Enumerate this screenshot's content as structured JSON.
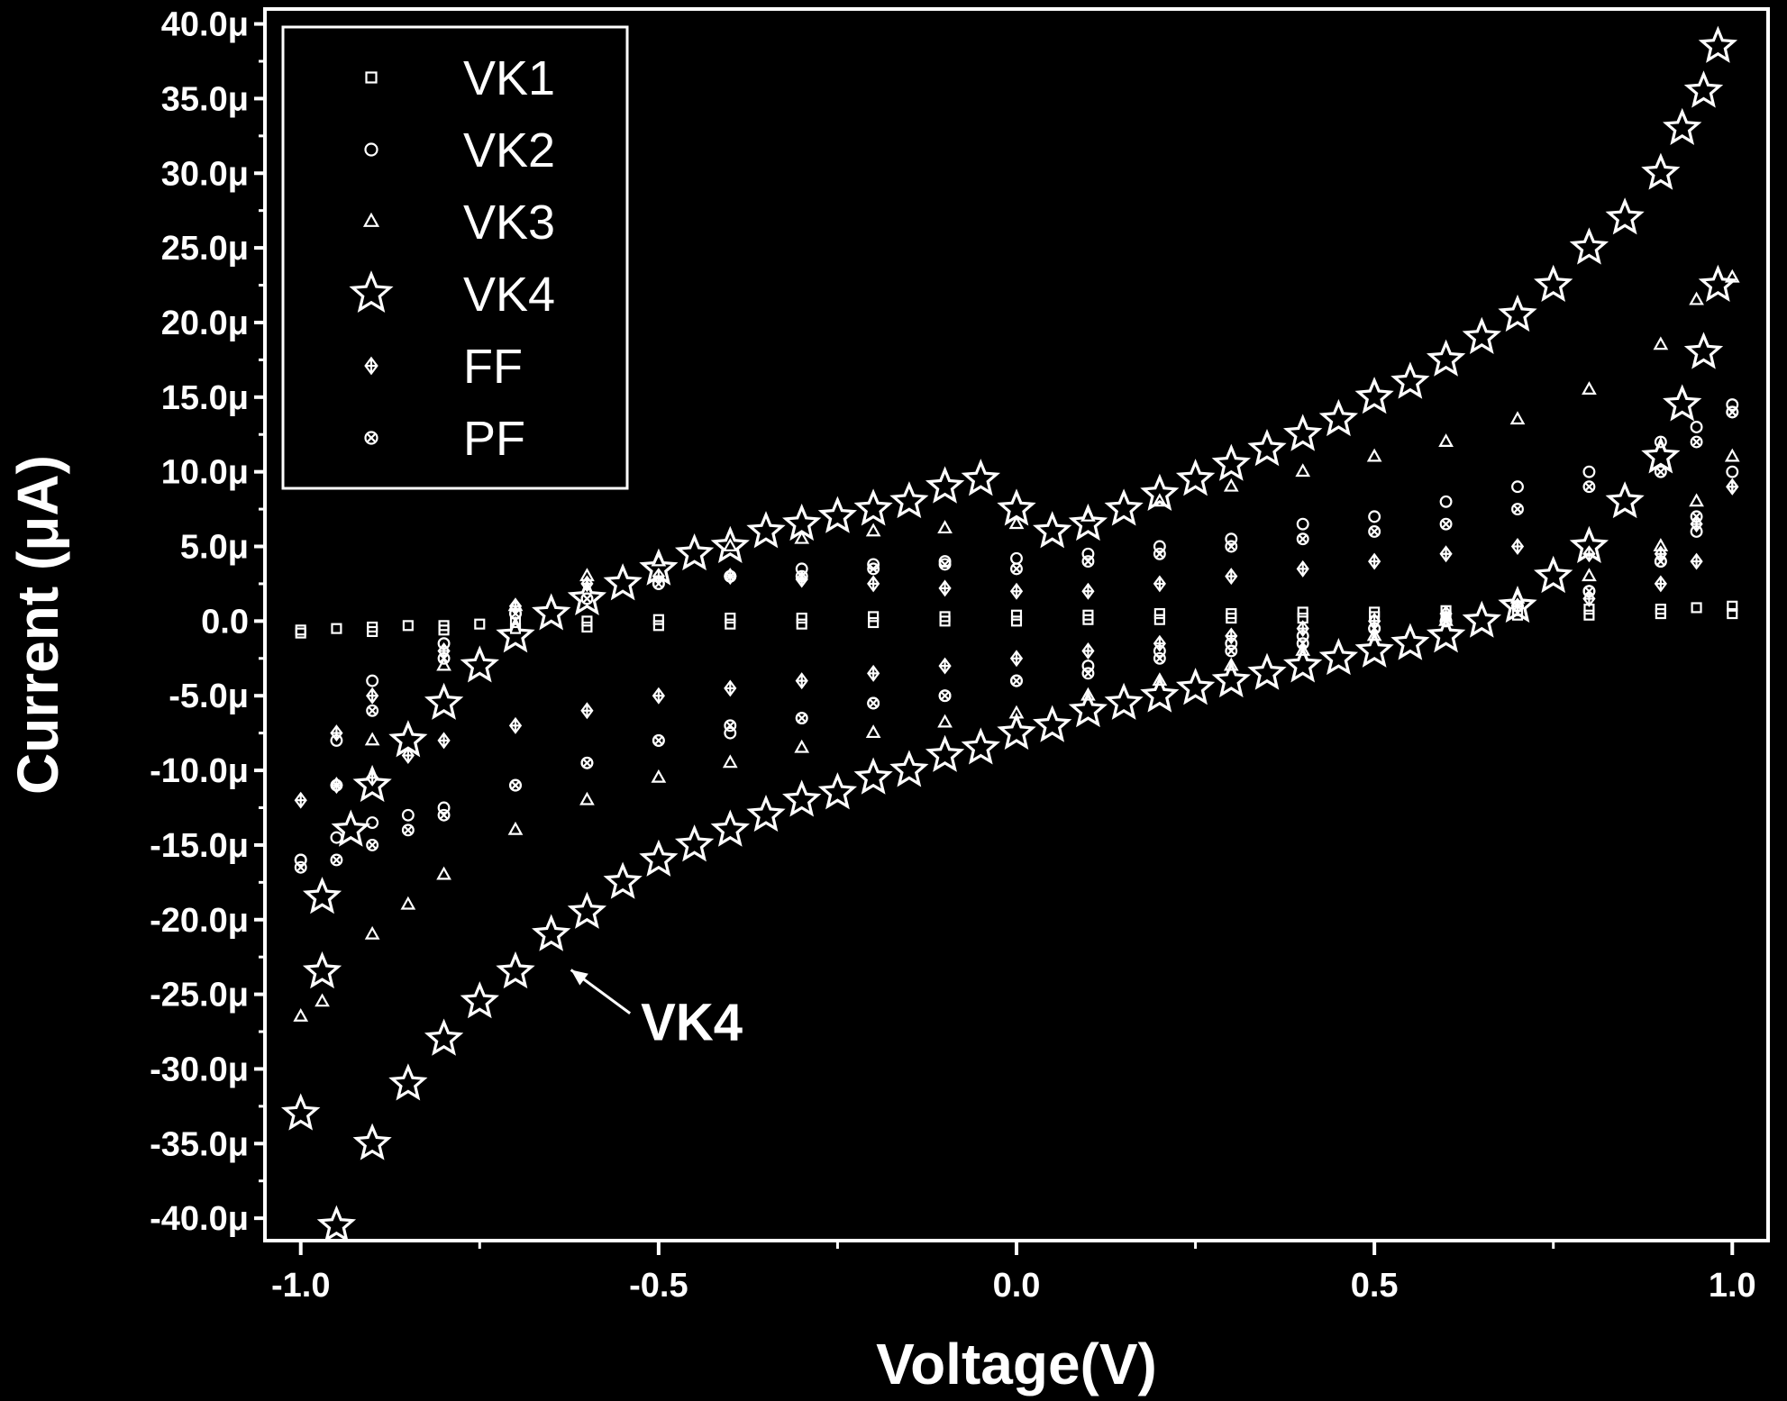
{
  "chart_data": {
    "type": "scatter",
    "xlabel": "Voltage(V)",
    "ylabel": "Current (μA)",
    "xlim": [
      -1.05,
      1.05
    ],
    "ylim": [
      -41.5,
      41.0
    ],
    "x_ticks": [
      -1.0,
      -0.5,
      0.0,
      0.5,
      1.0
    ],
    "x_tick_labels": [
      "-1.0",
      "-0.5",
      "0.0",
      "0.5",
      "1.0"
    ],
    "y_ticks": [
      40,
      35,
      30,
      25,
      20,
      15,
      10,
      5,
      0,
      -5,
      -10,
      -15,
      -20,
      -25,
      -30,
      -35,
      -40
    ],
    "y_tick_labels": [
      "40.0μ",
      "35.0μ",
      "30.0μ",
      "25.0μ",
      "20.0μ",
      "15.0μ",
      "10.0μ",
      "5.0μ",
      "0.0",
      "-5.0μ",
      "-10.0μ",
      "-15.0μ",
      "-20.0μ",
      "-25.0μ",
      "-30.0μ",
      "-35.0μ",
      "-40.0μ"
    ],
    "grid": false,
    "legend_position": "top-left",
    "annotation": {
      "text": "VK4",
      "x": -0.55,
      "y": -27,
      "arrow_to": [
        -0.63,
        -23
      ]
    },
    "colors": {
      "background": "#000000",
      "foreground": "#ffffff"
    },
    "series": [
      {
        "name": "VK1",
        "marker": "square",
        "x": [
          -1.0,
          -0.95,
          -0.9,
          -0.85,
          -0.8,
          -0.75,
          -0.7,
          -0.6,
          -0.5,
          -0.4,
          -0.3,
          -0.2,
          -0.1,
          0.0,
          0.1,
          0.2,
          0.3,
          0.4,
          0.5,
          0.6,
          0.7,
          0.8,
          0.9,
          0.95,
          1.0,
          -1.0,
          -0.9,
          -0.8,
          -0.7,
          -0.6,
          -0.5,
          -0.4,
          -0.3,
          -0.2,
          -0.1,
          0.0,
          0.1,
          0.2,
          0.3,
          0.4,
          0.5,
          0.6,
          0.7,
          0.8,
          0.9,
          1.0
        ],
        "y": [
          -0.6,
          -0.5,
          -0.4,
          -0.3,
          -0.3,
          -0.2,
          -0.1,
          0.0,
          0.1,
          0.2,
          0.2,
          0.3,
          0.3,
          0.4,
          0.4,
          0.5,
          0.5,
          0.6,
          0.6,
          0.7,
          0.7,
          0.8,
          0.8,
          0.9,
          1.0,
          -0.8,
          -0.7,
          -0.6,
          -0.5,
          -0.4,
          -0.3,
          -0.2,
          -0.2,
          -0.1,
          0.0,
          0.0,
          0.1,
          0.1,
          0.2,
          0.2,
          0.3,
          0.3,
          0.4,
          0.4,
          0.5,
          0.5
        ]
      },
      {
        "name": "VK2",
        "marker": "circle",
        "x": [
          -1.0,
          -0.95,
          -0.9,
          -0.85,
          -0.8,
          -0.7,
          -0.6,
          -0.5,
          -0.4,
          -0.3,
          -0.2,
          -0.1,
          0.0,
          0.1,
          0.2,
          0.3,
          0.4,
          0.5,
          0.6,
          0.7,
          0.8,
          0.9,
          0.95,
          1.0,
          1.0,
          0.95,
          0.9,
          0.8,
          0.7,
          0.6,
          0.5,
          0.4,
          0.3,
          0.2,
          0.1,
          0.0,
          -0.1,
          -0.2,
          -0.3,
          -0.4,
          -0.5,
          -0.6,
          -0.7,
          -0.8,
          -0.9,
          -0.95,
          -1.0
        ],
        "y": [
          -16,
          -14.5,
          -13.5,
          -13,
          -12.5,
          -11,
          -9.5,
          -8,
          -7.5,
          -6.5,
          -5.5,
          -5,
          -4,
          -3,
          -2,
          -1.5,
          -1,
          -0.5,
          0,
          1,
          2,
          4,
          6,
          10,
          14.5,
          13,
          12,
          10,
          9,
          8,
          7,
          6.5,
          5.5,
          5,
          4.5,
          4.2,
          4.0,
          3.8,
          3.5,
          3,
          2.5,
          1.5,
          0.5,
          -1.5,
          -4,
          -8,
          -16
        ]
      },
      {
        "name": "VK3",
        "marker": "triangle",
        "x": [
          -1.0,
          -0.97,
          -0.9,
          -0.85,
          -0.8,
          -0.7,
          -0.6,
          -0.5,
          -0.4,
          -0.3,
          -0.2,
          -0.1,
          0.0,
          0.1,
          0.2,
          0.3,
          0.4,
          0.5,
          0.6,
          0.7,
          0.8,
          0.9,
          0.95,
          1.0,
          1.0,
          0.95,
          0.9,
          0.8,
          0.7,
          0.6,
          0.5,
          0.4,
          0.3,
          0.2,
          0.1,
          0.0,
          -0.1,
          -0.2,
          -0.3,
          -0.4,
          -0.5,
          -0.6,
          -0.7,
          -0.8,
          -0.9
        ],
        "y": [
          -26.5,
          -25.5,
          -21,
          -19,
          -17,
          -14,
          -12,
          -10.5,
          -9.5,
          -8.5,
          -7.5,
          -6.8,
          -6.2,
          -5,
          -4,
          -3,
          -2,
          -1,
          0,
          1.5,
          3,
          5,
          8,
          11,
          23,
          21.5,
          18.5,
          15.5,
          13.5,
          12,
          11,
          10,
          9,
          8,
          7,
          6.5,
          6.2,
          6,
          5.5,
          5,
          4,
          3,
          1,
          -3,
          -8
        ]
      },
      {
        "name": "VK4",
        "marker": "star",
        "x": [
          -1.0,
          -0.97,
          -0.95,
          -0.9,
          -0.85,
          -0.8,
          -0.75,
          -0.7,
          -0.65,
          -0.6,
          -0.55,
          -0.5,
          -0.45,
          -0.4,
          -0.35,
          -0.3,
          -0.25,
          -0.2,
          -0.15,
          -0.1,
          -0.05,
          0.0,
          0.05,
          0.1,
          0.15,
          0.2,
          0.25,
          0.3,
          0.35,
          0.4,
          0.45,
          0.5,
          0.55,
          0.6,
          0.65,
          0.7,
          0.75,
          0.8,
          0.85,
          0.9,
          0.93,
          0.96,
          0.98,
          0.98,
          0.96,
          0.93,
          0.9,
          0.85,
          0.8,
          0.75,
          0.7,
          0.65,
          0.6,
          0.55,
          0.5,
          0.45,
          0.4,
          0.35,
          0.3,
          0.25,
          0.2,
          0.15,
          0.1,
          0.05,
          0.0,
          -0.05,
          -0.1,
          -0.15,
          -0.2,
          -0.25,
          -0.3,
          -0.35,
          -0.4,
          -0.45,
          -0.5,
          -0.55,
          -0.6,
          -0.65,
          -0.7,
          -0.75,
          -0.8,
          -0.85,
          -0.9,
          -0.93,
          -0.97
        ],
        "y": [
          -33,
          -23.5,
          -40.5,
          -35,
          -31,
          -28,
          -25.5,
          -23.5,
          -21,
          -19.5,
          -17.5,
          -16,
          -15,
          -14,
          -13,
          -12,
          -11.5,
          -10.5,
          -10,
          -9,
          -8.5,
          -7.5,
          -7,
          -6,
          -5.5,
          -5,
          -4.5,
          -4,
          -3.5,
          -3,
          -2.5,
          -2,
          -1.5,
          -1,
          0,
          1,
          3,
          5,
          8,
          11,
          14.5,
          18,
          22.5,
          38.5,
          35.5,
          33,
          30,
          27,
          25,
          22.5,
          20.5,
          19,
          17.5,
          16,
          15,
          13.5,
          12.5,
          11.5,
          10.5,
          9.5,
          8.5,
          7.5,
          6.5,
          6,
          7.5,
          9.5,
          9,
          8,
          7.5,
          7,
          6.5,
          6,
          5,
          4.5,
          3.5,
          2.5,
          1.5,
          0.5,
          -1,
          -3,
          -5.5,
          -8,
          -11,
          -14,
          -18.5
        ]
      },
      {
        "name": "FF",
        "marker": "diamond-cross",
        "x": [
          -1.0,
          -0.95,
          -0.9,
          -0.85,
          -0.8,
          -0.7,
          -0.6,
          -0.5,
          -0.4,
          -0.3,
          -0.2,
          -0.1,
          0.0,
          0.1,
          0.2,
          0.3,
          0.4,
          0.5,
          0.6,
          0.7,
          0.8,
          0.9,
          0.95,
          1.0,
          1.0,
          0.95,
          0.9,
          0.8,
          0.7,
          0.6,
          0.5,
          0.4,
          0.3,
          0.2,
          0.1,
          0.0,
          -0.1,
          -0.2,
          -0.3,
          -0.4,
          -0.5,
          -0.6,
          -0.7,
          -0.8,
          -0.9,
          -0.95
        ],
        "y": [
          -12,
          -11,
          -10.5,
          -9,
          -8,
          -7,
          -6,
          -5,
          -4.5,
          -4,
          -3.5,
          -3,
          -2.5,
          -2,
          -1.5,
          -1,
          -0.5,
          0,
          0.5,
          1,
          1.5,
          2.5,
          4,
          9,
          9,
          6.5,
          4.5,
          4.5,
          5,
          4.5,
          4,
          3.5,
          3,
          2.5,
          2,
          2,
          2.2,
          2.5,
          2.8,
          3,
          3,
          2.5,
          1,
          -2,
          -5,
          -7.5
        ]
      },
      {
        "name": "PF",
        "marker": "circle-x",
        "x": [
          -1.0,
          -0.95,
          -0.9,
          -0.85,
          -0.8,
          -0.7,
          -0.6,
          -0.5,
          -0.4,
          -0.3,
          -0.2,
          -0.1,
          0.0,
          0.1,
          0.2,
          0.3,
          0.4,
          0.5,
          0.6,
          0.7,
          0.8,
          0.9,
          0.95,
          1.0,
          1.0,
          0.95,
          0.9,
          0.8,
          0.7,
          0.6,
          0.5,
          0.4,
          0.3,
          0.2,
          0.1,
          0.0,
          -0.1,
          -0.2,
          -0.3,
          -0.4,
          -0.5,
          -0.6,
          -0.7,
          -0.8,
          -0.9,
          -0.95
        ],
        "y": [
          -16.5,
          -16,
          -15,
          -14,
          -13,
          -11,
          -9.5,
          -8,
          -7,
          -6.5,
          -5.5,
          -5,
          -4,
          -3.5,
          -2.5,
          -2,
          -1.5,
          -0.5,
          0,
          1,
          2,
          4,
          7,
          14,
          14,
          12,
          10,
          9,
          7.5,
          6.5,
          6,
          5.5,
          5,
          4.5,
          4,
          3.5,
          3.8,
          3.5,
          3,
          3,
          2.5,
          1.5,
          0.5,
          -2.5,
          -6,
          -11
        ]
      }
    ]
  }
}
